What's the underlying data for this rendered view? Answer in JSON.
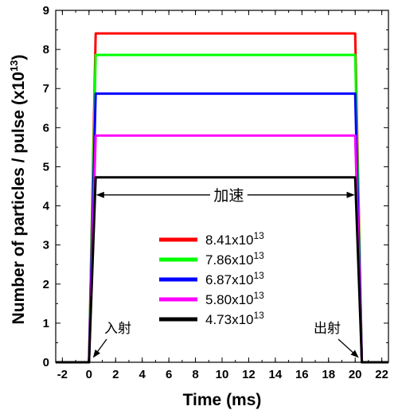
{
  "chart_data": {
    "type": "line",
    "xlabel": "Time (ms)",
    "ylabel_main": "Number of particles / pulse (x10",
    "ylabel_sup": "13",
    "ylabel_close": ")",
    "xlim": [
      -2.5,
      22.5
    ],
    "ylim": [
      0,
      9
    ],
    "xticks": [
      -2,
      0,
      2,
      4,
      6,
      8,
      10,
      12,
      14,
      16,
      18,
      20,
      22
    ],
    "yticks": [
      0,
      1,
      2,
      3,
      4,
      5,
      6,
      7,
      8,
      9
    ],
    "grid": false,
    "legend_position": "center-bottom",
    "series": [
      {
        "name": "8.41x10",
        "sup": "13",
        "color": "#ff0000",
        "level": 8.41,
        "x": [
          -2.5,
          0,
          0.5,
          20,
          20.5,
          22.5
        ],
        "y": [
          0,
          0,
          8.41,
          8.41,
          0,
          0
        ]
      },
      {
        "name": "7.86x10",
        "sup": "13",
        "color": "#00ff00",
        "level": 7.86,
        "x": [
          -2.5,
          0,
          0.5,
          20,
          20.5,
          22.5
        ],
        "y": [
          0,
          0,
          7.86,
          7.86,
          0,
          0
        ]
      },
      {
        "name": "6.87x10",
        "sup": "13",
        "color": "#0000ff",
        "level": 6.87,
        "x": [
          -2.5,
          0,
          0.5,
          20,
          20.5,
          22.5
        ],
        "y": [
          0,
          0,
          6.87,
          6.87,
          0,
          0
        ]
      },
      {
        "name": "5.80x10",
        "sup": "13",
        "color": "#ff00ff",
        "level": 5.8,
        "x": [
          -2.5,
          0,
          0.5,
          20,
          20.5,
          22.5
        ],
        "y": [
          0,
          0,
          5.8,
          5.8,
          0,
          0
        ]
      },
      {
        "name": "4.73x10",
        "sup": "13",
        "color": "#000000",
        "level": 4.73,
        "x": [
          -2.5,
          0,
          0.5,
          20,
          20.5,
          22.5
        ],
        "y": [
          0,
          0,
          4.73,
          4.73,
          0,
          0
        ]
      }
    ],
    "annotations": {
      "acceleration": {
        "text": "加速",
        "x_from": 0.6,
        "x_to": 19.9,
        "y": 4.28
      },
      "injection": {
        "text": "入射",
        "arrow_to_x": 0.1,
        "arrow_to_y": 0.05
      },
      "extraction": {
        "text": "出射",
        "arrow_to_x": 20.4,
        "arrow_to_y": 0.05
      }
    }
  }
}
